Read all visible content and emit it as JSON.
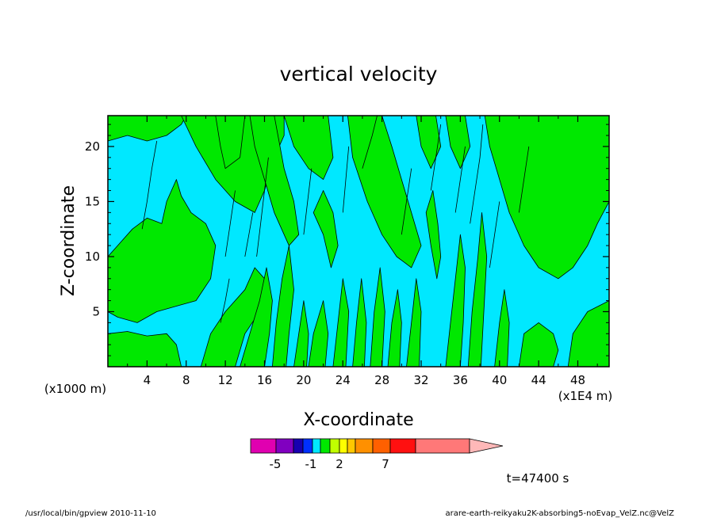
{
  "chart_data": {
    "type": "heatmap",
    "title": "vertical velocity",
    "xlabel": "X-coordinate",
    "ylabel": "Z-coordinate",
    "x_unit_left": "(x1000 m)",
    "x_unit_right": "(x1E4 m)",
    "xlim": [
      0,
      51.2
    ],
    "ylim": [
      0,
      22.8
    ],
    "x_ticks": [
      "4",
      "8",
      "12",
      "16",
      "20",
      "24",
      "28",
      "32",
      "36",
      "40",
      "44",
      "48"
    ],
    "y_ticks": [
      "5",
      "10",
      "15",
      "20"
    ],
    "colors": {
      "cyan": "#00e8ff",
      "green": "#00e800",
      "line": "#000000"
    },
    "regions": [
      {
        "fill": "green",
        "points": [
          [
            0,
            10
          ],
          [
            1,
            11
          ],
          [
            2.5,
            12.5
          ],
          [
            4,
            13.5
          ],
          [
            5.5,
            13
          ],
          [
            6,
            15
          ],
          [
            7,
            17
          ],
          [
            7.5,
            15.5
          ],
          [
            8.5,
            14
          ],
          [
            10,
            13
          ],
          [
            11,
            11
          ],
          [
            10.5,
            8
          ],
          [
            9,
            6
          ],
          [
            7,
            5.5
          ],
          [
            5,
            5
          ],
          [
            3,
            4
          ],
          [
            1,
            4.5
          ],
          [
            0,
            5
          ]
        ]
      },
      {
        "fill": "green",
        "points": [
          [
            0,
            20.5
          ],
          [
            2,
            21
          ],
          [
            4,
            20.5
          ],
          [
            6,
            21
          ],
          [
            7.5,
            22
          ],
          [
            8,
            22.8
          ],
          [
            0,
            22.8
          ]
        ]
      },
      {
        "fill": "green",
        "points": [
          [
            0,
            0
          ],
          [
            0,
            3
          ],
          [
            2,
            3.2
          ],
          [
            4,
            2.8
          ],
          [
            6,
            3
          ],
          [
            7,
            2
          ],
          [
            7.5,
            0
          ]
        ]
      },
      {
        "fill": "green",
        "points": [
          [
            9.5,
            0
          ],
          [
            10.5,
            3
          ],
          [
            12,
            5
          ],
          [
            14,
            7
          ],
          [
            15,
            9
          ],
          [
            16,
            8
          ],
          [
            15.5,
            5
          ],
          [
            14,
            3
          ],
          [
            13,
            0
          ]
        ]
      },
      {
        "fill": "green",
        "points": [
          [
            7.5,
            22.8
          ],
          [
            9,
            20
          ],
          [
            11,
            17
          ],
          [
            13,
            15
          ],
          [
            15,
            14
          ],
          [
            16,
            16
          ],
          [
            17,
            19
          ],
          [
            18,
            21
          ],
          [
            18,
            22.8
          ]
        ]
      },
      {
        "fill": "green",
        "points": [
          [
            11,
            22.8
          ],
          [
            11.5,
            20
          ],
          [
            12,
            18
          ],
          [
            13.5,
            19
          ],
          [
            14,
            22.8
          ]
        ]
      },
      {
        "fill": "green",
        "points": [
          [
            14.5,
            22.8
          ],
          [
            15,
            20
          ],
          [
            16,
            17
          ],
          [
            17,
            14
          ],
          [
            18.5,
            11
          ],
          [
            19.5,
            12
          ],
          [
            19,
            15
          ],
          [
            18,
            18
          ],
          [
            17,
            22.8
          ]
        ]
      },
      {
        "fill": "green",
        "points": [
          [
            13.5,
            0
          ],
          [
            14.5,
            3
          ],
          [
            15.5,
            6
          ],
          [
            16.2,
            9
          ],
          [
            16.8,
            6
          ],
          [
            16.5,
            3
          ],
          [
            16,
            0
          ]
        ]
      },
      {
        "fill": "green",
        "points": [
          [
            16.8,
            0
          ],
          [
            17.2,
            4
          ],
          [
            17.8,
            8
          ],
          [
            18.5,
            11
          ],
          [
            19,
            7
          ],
          [
            18.5,
            3
          ],
          [
            18.2,
            0
          ]
        ]
      },
      {
        "fill": "green",
        "points": [
          [
            19,
            0
          ],
          [
            19.5,
            3
          ],
          [
            20,
            6
          ],
          [
            20.5,
            3
          ],
          [
            20.3,
            0
          ]
        ]
      },
      {
        "fill": "green",
        "points": [
          [
            18,
            22.8
          ],
          [
            19,
            20
          ],
          [
            20.5,
            18
          ],
          [
            22,
            17
          ],
          [
            23,
            19
          ],
          [
            22.5,
            22.8
          ]
        ]
      },
      {
        "fill": "green",
        "points": [
          [
            21,
            14
          ],
          [
            22,
            12
          ],
          [
            22.8,
            9
          ],
          [
            23.5,
            11
          ],
          [
            23,
            14
          ],
          [
            22,
            16
          ]
        ]
      },
      {
        "fill": "green",
        "points": [
          [
            20.5,
            0
          ],
          [
            21,
            3
          ],
          [
            22,
            6
          ],
          [
            22.5,
            3
          ],
          [
            22.2,
            0
          ]
        ]
      },
      {
        "fill": "green",
        "points": [
          [
            23,
            0
          ],
          [
            23.5,
            4
          ],
          [
            24,
            8
          ],
          [
            24.6,
            5
          ],
          [
            24.3,
            0
          ]
        ]
      },
      {
        "fill": "green",
        "points": [
          [
            24.5,
            22.8
          ],
          [
            25,
            19
          ],
          [
            26.5,
            15
          ],
          [
            28,
            12
          ],
          [
            29.5,
            10
          ],
          [
            31,
            9
          ],
          [
            32,
            11
          ],
          [
            31,
            14
          ],
          [
            30,
            17
          ],
          [
            29,
            20
          ],
          [
            28,
            22.8
          ]
        ]
      },
      {
        "fill": "green",
        "points": [
          [
            25,
            0
          ],
          [
            25.4,
            4
          ],
          [
            25.9,
            8
          ],
          [
            26.4,
            4
          ],
          [
            26.2,
            0
          ]
        ]
      },
      {
        "fill": "green",
        "points": [
          [
            26.8,
            0
          ],
          [
            27.2,
            5
          ],
          [
            27.8,
            9
          ],
          [
            28.3,
            5
          ],
          [
            28,
            0
          ]
        ]
      },
      {
        "fill": "green",
        "points": [
          [
            28.6,
            0
          ],
          [
            29,
            4
          ],
          [
            29.6,
            7
          ],
          [
            30,
            4
          ],
          [
            29.8,
            0
          ]
        ]
      },
      {
        "fill": "green",
        "points": [
          [
            30.5,
            0
          ],
          [
            31,
            4
          ],
          [
            31.5,
            8
          ],
          [
            32,
            5
          ],
          [
            31.8,
            0
          ]
        ]
      },
      {
        "fill": "green",
        "points": [
          [
            31.5,
            22.8
          ],
          [
            32,
            20
          ],
          [
            33,
            18
          ],
          [
            34,
            20
          ],
          [
            33.5,
            22.8
          ]
        ]
      },
      {
        "fill": "green",
        "points": [
          [
            32.5,
            14
          ],
          [
            33,
            11
          ],
          [
            33.6,
            8
          ],
          [
            34,
            10
          ],
          [
            33.7,
            13
          ],
          [
            33.2,
            16
          ]
        ]
      },
      {
        "fill": "green",
        "points": [
          [
            34.5,
            0
          ],
          [
            35,
            4
          ],
          [
            35.5,
            8
          ],
          [
            36,
            12
          ],
          [
            36.5,
            9
          ],
          [
            36.3,
            4
          ],
          [
            36,
            0
          ]
        ]
      },
      {
        "fill": "green",
        "points": [
          [
            36.8,
            0
          ],
          [
            37.2,
            5
          ],
          [
            37.8,
            10
          ],
          [
            38.2,
            14
          ],
          [
            38.7,
            10
          ],
          [
            38.4,
            5
          ],
          [
            38.1,
            0
          ]
        ]
      },
      {
        "fill": "green",
        "points": [
          [
            38.5,
            22.8
          ],
          [
            39,
            20
          ],
          [
            40,
            17
          ],
          [
            41,
            14
          ],
          [
            42.5,
            11
          ],
          [
            44,
            9
          ],
          [
            46,
            8
          ],
          [
            47.5,
            9
          ],
          [
            49,
            11
          ],
          [
            50,
            13
          ],
          [
            51.2,
            15
          ],
          [
            51.2,
            22.8
          ]
        ]
      },
      {
        "fill": "green",
        "points": [
          [
            39.5,
            0
          ],
          [
            40,
            4
          ],
          [
            40.5,
            7
          ],
          [
            41,
            4
          ],
          [
            40.8,
            0
          ]
        ]
      },
      {
        "fill": "green",
        "points": [
          [
            42,
            0
          ],
          [
            42.5,
            3
          ],
          [
            44,
            4
          ],
          [
            45.5,
            3
          ],
          [
            46,
            1.5
          ],
          [
            45.5,
            0
          ]
        ]
      },
      {
        "fill": "green",
        "points": [
          [
            47,
            0
          ],
          [
            47.5,
            3
          ],
          [
            49,
            5
          ],
          [
            51.2,
            6
          ],
          [
            51.2,
            0
          ]
        ]
      },
      {
        "fill": "green",
        "points": [
          [
            34.5,
            22.8
          ],
          [
            35,
            20
          ],
          [
            36,
            18
          ],
          [
            37,
            20
          ],
          [
            36.5,
            22.8
          ]
        ]
      }
    ],
    "contour_lines": [
      [
        [
          3.5,
          12.5
        ],
        [
          4,
          15
        ],
        [
          4.5,
          18
        ],
        [
          5,
          20.5
        ]
      ],
      [
        [
          12,
          10
        ],
        [
          12.5,
          13
        ],
        [
          13,
          16
        ]
      ],
      [
        [
          15.2,
          10
        ],
        [
          15.6,
          13
        ],
        [
          16,
          16
        ],
        [
          16.4,
          19
        ]
      ],
      [
        [
          20,
          12
        ],
        [
          20.4,
          15
        ],
        [
          20.8,
          18
        ]
      ],
      [
        [
          24,
          14
        ],
        [
          24.3,
          17
        ],
        [
          24.6,
          20
        ]
      ],
      [
        [
          26,
          18
        ],
        [
          27,
          21
        ],
        [
          27.5,
          22.8
        ]
      ],
      [
        [
          30,
          12
        ],
        [
          30.5,
          15
        ],
        [
          31,
          18
        ]
      ],
      [
        [
          33,
          16
        ],
        [
          33.5,
          19
        ],
        [
          34,
          22
        ]
      ],
      [
        [
          35.5,
          14
        ],
        [
          36,
          17
        ],
        [
          36.5,
          20
        ]
      ],
      [
        [
          37,
          13
        ],
        [
          37.5,
          16
        ],
        [
          38,
          19
        ],
        [
          38.3,
          22
        ]
      ],
      [
        [
          39,
          9
        ],
        [
          39.5,
          12
        ],
        [
          40,
          15
        ]
      ],
      [
        [
          42,
          14
        ],
        [
          42.5,
          17
        ],
        [
          43,
          20
        ]
      ],
      [
        [
          11.5,
          4
        ],
        [
          12,
          6
        ],
        [
          12.4,
          8
        ]
      ],
      [
        [
          14,
          10
        ],
        [
          14.4,
          12
        ],
        [
          14.8,
          14
        ]
      ]
    ],
    "colorbar": {
      "colors": [
        "#e000b0",
        "#8000c0",
        "#1800b0",
        "#0030ff",
        "#00e8ff",
        "#00e800",
        "#c0ff00",
        "#ffff00",
        "#ffc800",
        "#ff9000",
        "#ff6000",
        "#ff1010",
        "#ff7878",
        "#ffb8b8"
      ],
      "labels": [
        "-5",
        "-1",
        "2",
        "7"
      ]
    },
    "time_label": "t=47400 s"
  },
  "footer": {
    "left": "/usr/local/bin/gpview  2010-11-10",
    "right": "arare-earth-reikyaku2K-absorbing5-noEvap_VelZ.nc@VelZ"
  }
}
